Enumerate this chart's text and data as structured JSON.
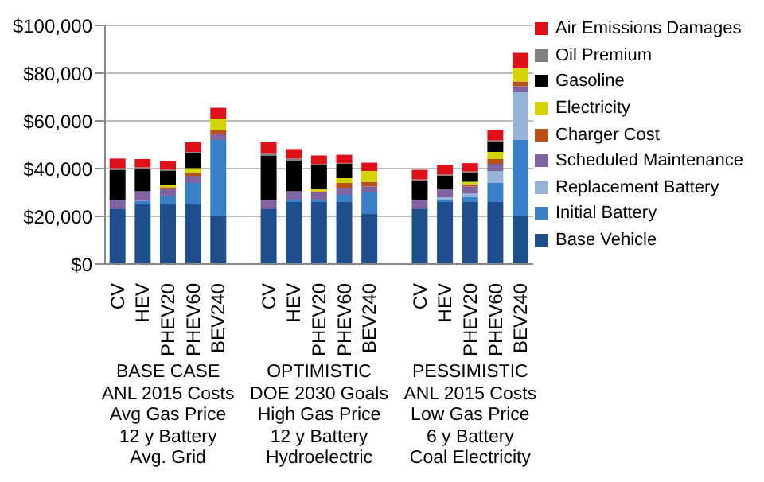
{
  "chart_data": {
    "type": "bar",
    "stacked": true,
    "categories": [
      "CV",
      "HEV",
      "PHEV20",
      "PHEV60",
      "BEV240",
      null,
      "CV",
      "HEV",
      "PHEV20",
      "PHEV60",
      "BEV240",
      null,
      "CV",
      "HEV",
      "PHEV20",
      "PHEV60",
      "BEV240"
    ],
    "series": [
      {
        "name": "Base Vehicle",
        "color": "#1f4e8c",
        "values": [
          23000,
          25000,
          25000,
          25000,
          20000,
          null,
          23000,
          26000,
          26000,
          26000,
          21000,
          null,
          23000,
          26000,
          26000,
          26000,
          20000
        ]
      },
      {
        "name": "Initial Battery",
        "color": "#3a80c8",
        "values": [
          0,
          1500,
          3500,
          9000,
          32000,
          null,
          0,
          1000,
          1000,
          3000,
          9000,
          null,
          0,
          1000,
          2000,
          8000,
          32000
        ]
      },
      {
        "name": "Replacement Battery",
        "color": "#95b3d7",
        "values": [
          0,
          0,
          0,
          0,
          0,
          null,
          0,
          0,
          0,
          0,
          0,
          null,
          0,
          1000,
          1500,
          5000,
          20000
        ]
      },
      {
        "name": "Scheduled Maintenance",
        "color": "#8064a2",
        "values": [
          4000,
          4000,
          3000,
          3000,
          2500,
          null,
          4000,
          3500,
          3000,
          3000,
          2500,
          null,
          4000,
          3500,
          3000,
          3000,
          2500
        ]
      },
      {
        "name": "Charger Cost",
        "color": "#b8501a",
        "values": [
          0,
          0,
          700,
          1200,
          1500,
          null,
          0,
          0,
          500,
          2000,
          2000,
          null,
          0,
          0,
          1000,
          2000,
          2000
        ]
      },
      {
        "name": "Electricity",
        "color": "#d4d400",
        "values": [
          0,
          0,
          1000,
          2000,
          5000,
          null,
          0,
          0,
          1000,
          2000,
          4500,
          null,
          0,
          0,
          1000,
          3000,
          5500
        ]
      },
      {
        "name": "Gasoline",
        "color": "#000000",
        "values": [
          12500,
          9500,
          6000,
          6500,
          0,
          null,
          18500,
          13000,
          10000,
          6000,
          0,
          null,
          8000,
          5500,
          4000,
          4500,
          0
        ]
      },
      {
        "name": "Oil Premium",
        "color": "#7f7f7f",
        "values": [
          700,
          500,
          400,
          300,
          0,
          null,
          1000,
          700,
          500,
          300,
          0,
          null,
          500,
          500,
          300,
          300,
          0
        ]
      },
      {
        "name": "Air Emissions Damages",
        "color": "#e0101a",
        "values": [
          4000,
          3500,
          3500,
          4000,
          4500,
          null,
          4500,
          4000,
          3500,
          3500,
          3500,
          null,
          4000,
          4000,
          3500,
          4500,
          6500
        ]
      }
    ],
    "ylim": [
      0,
      100000
    ],
    "yticks": [
      {
        "value": 0,
        "label": "$0"
      },
      {
        "value": 20000,
        "label": "$20,000"
      },
      {
        "value": 40000,
        "label": "$40,000"
      },
      {
        "value": 60000,
        "label": "$60,000"
      },
      {
        "value": 80000,
        "label": "$80,000"
      },
      {
        "value": 100000,
        "label": "$100,000"
      }
    ],
    "grid": "y",
    "legend": "right",
    "annotations": [
      {
        "text": "BASE CASE\nANL 2015 Costs\nAvg Gas Price\n12 y Battery\nAvg. Grid"
      },
      {
        "text": "OPTIMISTIC\nDOE 2030 Goals\nHigh Gas Price\n12 y Battery\nHydroelectric"
      },
      {
        "text": "PESSIMISTIC\nANL 2015 Costs\nLow Gas Price\n6 y Battery\nCoal Electricity"
      }
    ]
  }
}
